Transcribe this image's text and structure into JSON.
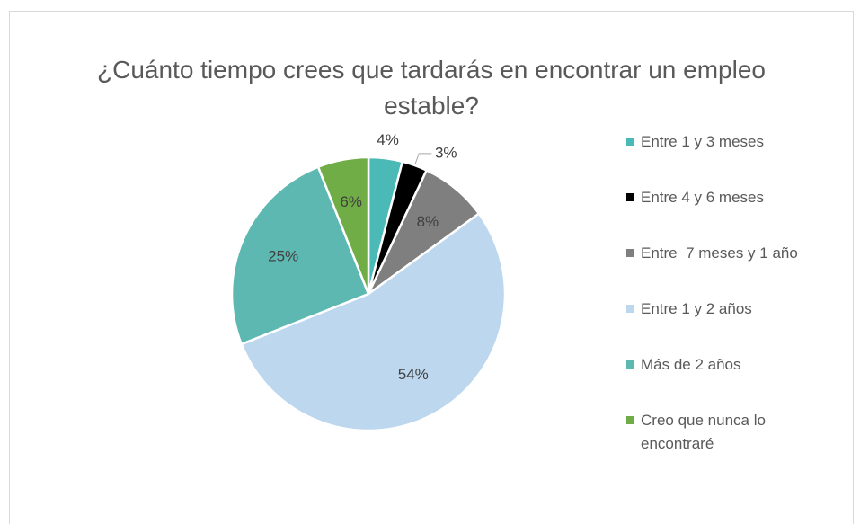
{
  "chart_data": {
    "type": "pie",
    "title": "¿Cuánto tiempo crees que tardarás en encontrar un empleo estable?",
    "categories": [
      "Entre 1 y 3 meses",
      "Entre 4 y 6 meses",
      "Entre  7 meses y 1 año",
      "Entre 1 y 2 años",
      "Más de 2 años",
      "Creo que nunca lo encontraré"
    ],
    "values": [
      4,
      3,
      8,
      54,
      25,
      6
    ],
    "value_labels": [
      "4%",
      "3%",
      "8%",
      "54%",
      "25%",
      "6%"
    ],
    "colors": [
      "#4bb9b5",
      "#000000",
      "#7f7f7f",
      "#bdd7ee",
      "#5db8b2",
      "#70ad47"
    ],
    "legend": "right"
  }
}
